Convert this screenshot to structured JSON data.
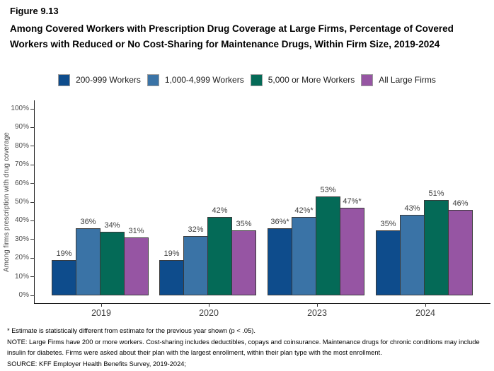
{
  "figure_label": "Figure 9.13",
  "title": "Among Covered Workers with Prescription Drug Coverage at Large Firms, Percentage of Covered Workers with Reduced or No Cost-Sharing for Maintenance Drugs, Within Firm Size, 2019-2024",
  "legend": [
    {
      "label": "200-999 Workers",
      "color": "#0E4C8C"
    },
    {
      "label": "1,000-4,999 Workers",
      "color": "#3A73A6"
    },
    {
      "label": "5,000 or More Workers",
      "color": "#046A57"
    },
    {
      "label": "All Large Firms",
      "color": "#9655A3"
    }
  ],
  "chart_data": {
    "type": "bar",
    "title": "",
    "xlabel": "",
    "ylabel": "Among firms prescription with drug coverage",
    "ylim": [
      0,
      100
    ],
    "ytick_step": 10,
    "yticks": [
      "0%",
      "10%",
      "20%",
      "30%",
      "40%",
      "50%",
      "60%",
      "70%",
      "80%",
      "90%",
      "100%"
    ],
    "grid": false,
    "legend_position": "top",
    "categories": [
      "2019",
      "2020",
      "2023",
      "2024"
    ],
    "series": [
      {
        "name": "200-999 Workers",
        "color": "#0E4C8C",
        "values": [
          19,
          19,
          36,
          35
        ],
        "labels": [
          "19%",
          "19%",
          "36%*",
          "35%"
        ]
      },
      {
        "name": "1,000-4,999 Workers",
        "color": "#3A73A6",
        "values": [
          36,
          32,
          42,
          43
        ],
        "labels": [
          "36%",
          "32%",
          "42%*",
          "43%"
        ]
      },
      {
        "name": "5,000 or More Workers",
        "color": "#046A57",
        "values": [
          34,
          42,
          53,
          51
        ],
        "labels": [
          "34%",
          "42%",
          "53%",
          "51%"
        ]
      },
      {
        "name": "All Large Firms",
        "color": "#9655A3",
        "values": [
          31,
          35,
          47,
          46
        ],
        "labels": [
          "31%",
          "35%",
          "47%*",
          "46%"
        ]
      }
    ]
  },
  "footnotes": [
    "* Estimate is statistically different from estimate for the previous year shown (p < .05).",
    "NOTE: Large Firms have 200 or more workers.  Cost-sharing includes deductibles, copays and coinsurance. Maintenance drugs for chronic conditions may include insulin for diabetes. Firms were asked about their plan with the largest enrollment, within their plan type with the most enrollment.",
    "SOURCE: KFF Employer Health Benefits Survey, 2019-2024;"
  ],
  "style": {
    "bar_border": "#3a3a3a",
    "axis_line": "#1a1a1a",
    "tick_color": "#333333",
    "axis_text": "#4d4d4d"
  }
}
